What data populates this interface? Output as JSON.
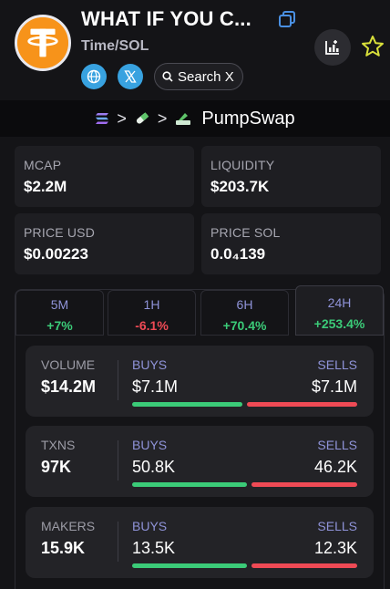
{
  "token": {
    "name": "WHAT IF YOU C...",
    "pair": "Time/SOL",
    "search_label": "Search X"
  },
  "breadcrumb": {
    "dex": "PumpSwap",
    "separator": ">"
  },
  "stats": {
    "mcap": {
      "label": "MCAP",
      "value": "$2.2M"
    },
    "liquidity": {
      "label": "LIQUIDITY",
      "value": "$203.7K"
    },
    "price_usd": {
      "label": "PRICE USD",
      "value": "$0.00223"
    },
    "price_sol": {
      "label": "PRICE SOL",
      "value": "0.0₄139"
    }
  },
  "timeframes": [
    {
      "label": "5M",
      "change": "+7%",
      "direction": "up"
    },
    {
      "label": "1H",
      "change": "-6.1%",
      "direction": "down"
    },
    {
      "label": "6H",
      "change": "+70.4%",
      "direction": "up"
    },
    {
      "label": "24H",
      "change": "+253.4%",
      "direction": "up",
      "active": true
    }
  ],
  "activity": {
    "buys_label": "BUYS",
    "sells_label": "SELLS",
    "volume": {
      "label": "VOLUME",
      "total": "$14.2M",
      "buys": "$7.1M",
      "sells": "$7.1M",
      "buy_share": 0.5
    },
    "txns": {
      "label": "TXNS",
      "total": "97K",
      "buys": "50.8K",
      "sells": "46.2K",
      "buy_share": 0.52
    },
    "makers": {
      "label": "MAKERS",
      "total": "15.9K",
      "buys": "13.5K",
      "sells": "12.3K",
      "buy_share": 0.52
    }
  },
  "colors": {
    "background": "#141417",
    "card": "#1e1e22",
    "accent_label": "#8f93d8",
    "positive": "#3bcb78",
    "negative": "#ef4a55",
    "token_orange": "#f7931a",
    "social_blue": "#38a2e0"
  },
  "icons": {
    "website": "globe-icon",
    "twitter": "x-logo-icon",
    "search": "search-icon",
    "copy": "copy-icon",
    "chart": "chart-add-icon",
    "watchlist": "star-icon",
    "chain": "solana-icon",
    "launchpad": "pill-icon",
    "dex": "pumpswap-icon"
  }
}
